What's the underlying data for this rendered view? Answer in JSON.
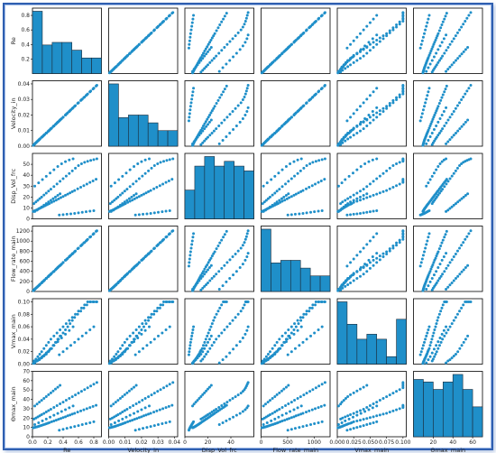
{
  "chart_data": {
    "type": "scatter",
    "kind": "pair-plot",
    "color": "#1f77b4",
    "point_color": "#1f8fc9",
    "hist_fill": "#1f8fc9",
    "variables": [
      "Re",
      "Velocity_in",
      "Disp_Vol_frc",
      "Flow_rate_main",
      "Vmax_main",
      "Θmax_main"
    ],
    "axis_ranges": {
      "Re": [
        0,
        0.9
      ],
      "Velocity_in": [
        0,
        0.042
      ],
      "Disp_Vol_frc": [
        0,
        60
      ],
      "Flow_rate_main": [
        0,
        1300
      ],
      "Vmax_main": [
        0,
        0.105
      ],
      "Θmax_main": [
        0,
        70
      ]
    },
    "x_ticks": {
      "Re": [
        "0.0",
        "0.2",
        "0.4",
        "0.6",
        "0.8"
      ],
      "Velocity_in": [
        "0.00",
        "0.01",
        "0.02",
        "0.03",
        "0.04"
      ],
      "Disp_Vol_frc": [
        "0",
        "20",
        "40"
      ],
      "Flow_rate_main": [
        "0",
        "500",
        "1000"
      ],
      "Vmax_main": [
        "0.000",
        "0.025",
        "0.050",
        "0.075",
        "0.100"
      ],
      "Θmax_main": [
        "20",
        "40",
        "60"
      ]
    },
    "y_ticks": {
      "Re": [
        "0.2",
        "0.4",
        "0.6",
        "0.8"
      ],
      "Velocity_in": [
        "0.00",
        "0.01",
        "0.02",
        "0.03",
        "0.04"
      ],
      "Disp_Vol_frc": [
        "0",
        "10",
        "20",
        "30",
        "40",
        "50"
      ],
      "Flow_rate_main": [
        "0",
        "200",
        "400",
        "600",
        "800",
        "1000",
        "1200"
      ],
      "Vmax_main": [
        "0.00",
        "0.02",
        "0.04",
        "0.06",
        "0.08",
        "0.10"
      ],
      "Θmax_main": [
        "0",
        "10",
        "20",
        "30",
        "40",
        "50",
        "60",
        "70"
      ]
    },
    "histograms": {
      "Re": [
        24,
        11,
        12,
        12,
        9,
        6,
        6
      ],
      "Velocity_in": [
        24,
        11,
        12,
        12,
        9,
        6,
        6
      ],
      "Disp_Vol_frc": [
        6,
        11,
        13,
        11,
        12,
        11,
        10
      ],
      "Flow_rate_main": [
        24,
        11,
        12,
        12,
        9,
        6,
        6
      ],
      "Vmax_main": [
        25,
        16,
        10,
        12,
        10,
        3,
        18
      ],
      "Θmax_main": [
        23,
        22,
        19,
        22,
        25,
        19,
        12
      ]
    },
    "records": [
      {
        "Re": 0.01,
        "Velocity_in": 0.0005,
        "Disp_Vol_frc": 6.7,
        "Flow_rate_main": 15,
        "Vmax_main": 0.001,
        "Θmax_main": 9.6
      },
      {
        "Re": 0.02,
        "Velocity_in": 0.001,
        "Disp_Vol_frc": 7.0,
        "Flow_rate_main": 30,
        "Vmax_main": 0.002,
        "Θmax_main": 9.8
      },
      {
        "Re": 0.03,
        "Velocity_in": 0.0015,
        "Disp_Vol_frc": 7.4,
        "Flow_rate_main": 45,
        "Vmax_main": 0.003,
        "Θmax_main": 10.0
      },
      {
        "Re": 0.04,
        "Velocity_in": 0.002,
        "Disp_Vol_frc": 7.7,
        "Flow_rate_main": 60,
        "Vmax_main": 0.004,
        "Θmax_main": 10.2
      },
      {
        "Re": 0.055,
        "Velocity_in": 0.0027,
        "Disp_Vol_frc": 8.2,
        "Flow_rate_main": 80,
        "Vmax_main": 0.005,
        "Θmax_main": 10.5
      },
      {
        "Re": 0.07,
        "Velocity_in": 0.0034,
        "Disp_Vol_frc": 8.7,
        "Flow_rate_main": 100,
        "Vmax_main": 0.006,
        "Θmax_main": 10.9
      },
      {
        "Re": 0.085,
        "Velocity_in": 0.0041,
        "Disp_Vol_frc": 9.3,
        "Flow_rate_main": 120,
        "Vmax_main": 0.008,
        "Θmax_main": 11.2
      },
      {
        "Re": 0.1,
        "Velocity_in": 0.0048,
        "Disp_Vol_frc": 9.8,
        "Flow_rate_main": 145,
        "Vmax_main": 0.009,
        "Θmax_main": 11.7
      },
      {
        "Re": 0.12,
        "Velocity_in": 0.0057,
        "Disp_Vol_frc": 10.5,
        "Flow_rate_main": 170,
        "Vmax_main": 0.011,
        "Θmax_main": 12.2
      },
      {
        "Re": 0.14,
        "Velocity_in": 0.0066,
        "Disp_Vol_frc": 11.2,
        "Flow_rate_main": 200,
        "Vmax_main": 0.013,
        "Θmax_main": 12.8
      },
      {
        "Re": 0.16,
        "Velocity_in": 0.0075,
        "Disp_Vol_frc": 11.9,
        "Flow_rate_main": 230,
        "Vmax_main": 0.015,
        "Θmax_main": 13.3
      },
      {
        "Re": 0.18,
        "Velocity_in": 0.0084,
        "Disp_Vol_frc": 12.6,
        "Flow_rate_main": 260,
        "Vmax_main": 0.017,
        "Θmax_main": 13.9
      },
      {
        "Re": 0.2,
        "Velocity_in": 0.0093,
        "Disp_Vol_frc": 13.3,
        "Flow_rate_main": 290,
        "Vmax_main": 0.02,
        "Θmax_main": 14.5
      },
      {
        "Re": 0.22,
        "Velocity_in": 0.0102,
        "Disp_Vol_frc": 14.0,
        "Flow_rate_main": 320,
        "Vmax_main": 0.022,
        "Θmax_main": 15.1
      },
      {
        "Re": 0.25,
        "Velocity_in": 0.0116,
        "Disp_Vol_frc": 15.1,
        "Flow_rate_main": 360,
        "Vmax_main": 0.025,
        "Θmax_main": 16.0
      },
      {
        "Re": 0.28,
        "Velocity_in": 0.013,
        "Disp_Vol_frc": 16.1,
        "Flow_rate_main": 400,
        "Vmax_main": 0.03,
        "Θmax_main": 16.9
      },
      {
        "Re": 0.31,
        "Velocity_in": 0.0144,
        "Disp_Vol_frc": 17.2,
        "Flow_rate_main": 445,
        "Vmax_main": 0.035,
        "Θmax_main": 17.8
      },
      {
        "Re": 0.34,
        "Velocity_in": 0.0158,
        "Disp_Vol_frc": 18.3,
        "Flow_rate_main": 490,
        "Vmax_main": 0.04,
        "Θmax_main": 18.7
      },
      {
        "Re": 0.37,
        "Velocity_in": 0.0172,
        "Disp_Vol_frc": 19.4,
        "Flow_rate_main": 530,
        "Vmax_main": 0.045,
        "Θmax_main": 19.6
      },
      {
        "Re": 0.4,
        "Velocity_in": 0.0186,
        "Disp_Vol_frc": 20.5,
        "Flow_rate_main": 575,
        "Vmax_main": 0.05,
        "Θmax_main": 20.5
      },
      {
        "Re": 0.43,
        "Velocity_in": 0.02,
        "Disp_Vol_frc": 21.6,
        "Flow_rate_main": 620,
        "Vmax_main": 0.055,
        "Θmax_main": 21.4
      },
      {
        "Re": 0.46,
        "Velocity_in": 0.0214,
        "Disp_Vol_frc": 22.7,
        "Flow_rate_main": 660,
        "Vmax_main": 0.06,
        "Θmax_main": 22.4
      },
      {
        "Re": 0.49,
        "Velocity_in": 0.0228,
        "Disp_Vol_frc": 23.8,
        "Flow_rate_main": 705,
        "Vmax_main": 0.065,
        "Θmax_main": 23.3
      },
      {
        "Re": 0.52,
        "Velocity_in": 0.0242,
        "Disp_Vol_frc": 24.9,
        "Flow_rate_main": 750,
        "Vmax_main": 0.07,
        "Θmax_main": 24.2
      },
      {
        "Re": 0.55,
        "Velocity_in": 0.0256,
        "Disp_Vol_frc": 26.0,
        "Flow_rate_main": 790,
        "Vmax_main": 0.075,
        "Θmax_main": 25.1
      },
      {
        "Re": 0.59,
        "Velocity_in": 0.0275,
        "Disp_Vol_frc": 27.5,
        "Flow_rate_main": 850,
        "Vmax_main": 0.08,
        "Θmax_main": 26.4
      },
      {
        "Re": 0.63,
        "Velocity_in": 0.0293,
        "Disp_Vol_frc": 29.0,
        "Flow_rate_main": 905,
        "Vmax_main": 0.085,
        "Θmax_main": 27.6
      },
      {
        "Re": 0.67,
        "Velocity_in": 0.0312,
        "Disp_Vol_frc": 30.4,
        "Flow_rate_main": 965,
        "Vmax_main": 0.09,
        "Θmax_main": 28.8
      },
      {
        "Re": 0.71,
        "Velocity_in": 0.033,
        "Disp_Vol_frc": 31.9,
        "Flow_rate_main": 1020,
        "Vmax_main": 0.095,
        "Θmax_main": 30.0
      },
      {
        "Re": 0.75,
        "Velocity_in": 0.0349,
        "Disp_Vol_frc": 33.4,
        "Flow_rate_main": 1080,
        "Vmax_main": 0.1,
        "Θmax_main": 31.3
      },
      {
        "Re": 0.79,
        "Velocity_in": 0.0367,
        "Disp_Vol_frc": 34.8,
        "Flow_rate_main": 1135,
        "Vmax_main": 0.1,
        "Θmax_main": 32.5
      },
      {
        "Re": 0.83,
        "Velocity_in": 0.0386,
        "Disp_Vol_frc": 36.3,
        "Flow_rate_main": 1195,
        "Vmax_main": 0.1,
        "Θmax_main": 33.7
      },
      {
        "Re": 0.02,
        "Velocity_in": 0.001,
        "Disp_Vol_frc": 14.0,
        "Flow_rate_main": 30,
        "Vmax_main": 0.005,
        "Θmax_main": 19.0
      },
      {
        "Re": 0.045,
        "Velocity_in": 0.0022,
        "Disp_Vol_frc": 15.5,
        "Flow_rate_main": 65,
        "Vmax_main": 0.008,
        "Θmax_main": 20.0
      },
      {
        "Re": 0.07,
        "Velocity_in": 0.0034,
        "Disp_Vol_frc": 17.0,
        "Flow_rate_main": 100,
        "Vmax_main": 0.012,
        "Θmax_main": 21.2
      },
      {
        "Re": 0.095,
        "Velocity_in": 0.0046,
        "Disp_Vol_frc": 18.5,
        "Flow_rate_main": 135,
        "Vmax_main": 0.016,
        "Θmax_main": 22.4
      },
      {
        "Re": 0.12,
        "Velocity_in": 0.0057,
        "Disp_Vol_frc": 20.0,
        "Flow_rate_main": 170,
        "Vmax_main": 0.02,
        "Θmax_main": 23.6
      },
      {
        "Re": 0.15,
        "Velocity_in": 0.0071,
        "Disp_Vol_frc": 21.8,
        "Flow_rate_main": 215,
        "Vmax_main": 0.025,
        "Θmax_main": 25.0
      },
      {
        "Re": 0.18,
        "Velocity_in": 0.0084,
        "Disp_Vol_frc": 23.6,
        "Flow_rate_main": 260,
        "Vmax_main": 0.03,
        "Θmax_main": 26.5
      },
      {
        "Re": 0.21,
        "Velocity_in": 0.0098,
        "Disp_Vol_frc": 25.4,
        "Flow_rate_main": 300,
        "Vmax_main": 0.035,
        "Θmax_main": 28.0
      },
      {
        "Re": 0.24,
        "Velocity_in": 0.0112,
        "Disp_Vol_frc": 27.2,
        "Flow_rate_main": 345,
        "Vmax_main": 0.04,
        "Θmax_main": 29.4
      },
      {
        "Re": 0.28,
        "Velocity_in": 0.013,
        "Disp_Vol_frc": 29.6,
        "Flow_rate_main": 400,
        "Vmax_main": 0.045,
        "Θmax_main": 31.4
      },
      {
        "Re": 0.32,
        "Velocity_in": 0.0149,
        "Disp_Vol_frc": 32.0,
        "Flow_rate_main": 460,
        "Vmax_main": 0.05,
        "Θmax_main": 33.3
      },
      {
        "Re": 0.36,
        "Velocity_in": 0.0168,
        "Disp_Vol_frc": 34.4,
        "Flow_rate_main": 515,
        "Vmax_main": 0.055,
        "Θmax_main": 35.2
      },
      {
        "Re": 0.4,
        "Velocity_in": 0.0186,
        "Disp_Vol_frc": 36.8,
        "Flow_rate_main": 575,
        "Vmax_main": 0.06,
        "Θmax_main": 37.1
      },
      {
        "Re": 0.44,
        "Velocity_in": 0.0205,
        "Disp_Vol_frc": 39.2,
        "Flow_rate_main": 630,
        "Vmax_main": 0.065,
        "Θmax_main": 39.1
      },
      {
        "Re": 0.48,
        "Velocity_in": 0.0223,
        "Disp_Vol_frc": 41.6,
        "Flow_rate_main": 690,
        "Vmax_main": 0.07,
        "Θmax_main": 41.0
      },
      {
        "Re": 0.52,
        "Velocity_in": 0.0242,
        "Disp_Vol_frc": 44.0,
        "Flow_rate_main": 745,
        "Vmax_main": 0.075,
        "Θmax_main": 42.9
      },
      {
        "Re": 0.56,
        "Velocity_in": 0.0261,
        "Disp_Vol_frc": 46.4,
        "Flow_rate_main": 805,
        "Vmax_main": 0.08,
        "Θmax_main": 44.8
      },
      {
        "Re": 0.6,
        "Velocity_in": 0.0279,
        "Disp_Vol_frc": 48.8,
        "Flow_rate_main": 860,
        "Vmax_main": 0.085,
        "Θmax_main": 46.7
      },
      {
        "Re": 0.64,
        "Velocity_in": 0.0298,
        "Disp_Vol_frc": 50.5,
        "Flow_rate_main": 920,
        "Vmax_main": 0.09,
        "Θmax_main": 48.6
      },
      {
        "Re": 0.68,
        "Velocity_in": 0.0316,
        "Disp_Vol_frc": 51.8,
        "Flow_rate_main": 975,
        "Vmax_main": 0.095,
        "Θmax_main": 50.5
      },
      {
        "Re": 0.72,
        "Velocity_in": 0.0335,
        "Disp_Vol_frc": 52.8,
        "Flow_rate_main": 1035,
        "Vmax_main": 0.1,
        "Θmax_main": 52.4
      },
      {
        "Re": 0.76,
        "Velocity_in": 0.0354,
        "Disp_Vol_frc": 53.6,
        "Flow_rate_main": 1090,
        "Vmax_main": 0.1,
        "Θmax_main": 54.3
      },
      {
        "Re": 0.8,
        "Velocity_in": 0.0372,
        "Disp_Vol_frc": 54.3,
        "Flow_rate_main": 1150,
        "Vmax_main": 0.1,
        "Θmax_main": 56.2
      },
      {
        "Re": 0.84,
        "Velocity_in": 0.0391,
        "Disp_Vol_frc": 55.0,
        "Flow_rate_main": 1205,
        "Vmax_main": 0.1,
        "Θmax_main": 58.1
      },
      {
        "Re": 0.03,
        "Velocity_in": 0.0015,
        "Disp_Vol_frc": 6.7,
        "Flow_rate_main": 45,
        "Vmax_main": 0.002,
        "Θmax_main": 33.0
      },
      {
        "Re": 0.06,
        "Velocity_in": 0.0029,
        "Disp_Vol_frc": 8.0,
        "Flow_rate_main": 85,
        "Vmax_main": 0.005,
        "Θmax_main": 35.0
      },
      {
        "Re": 0.09,
        "Velocity_in": 0.0043,
        "Disp_Vol_frc": 9.5,
        "Flow_rate_main": 130,
        "Vmax_main": 0.007,
        "Θmax_main": 37.0
      },
      {
        "Re": 0.12,
        "Velocity_in": 0.0057,
        "Disp_Vol_frc": 11.0,
        "Flow_rate_main": 170,
        "Vmax_main": 0.01,
        "Θmax_main": 39.0
      },
      {
        "Re": 0.15,
        "Velocity_in": 0.0071,
        "Disp_Vol_frc": 12.5,
        "Flow_rate_main": 215,
        "Vmax_main": 0.013,
        "Θmax_main": 41.0
      },
      {
        "Re": 0.18,
        "Velocity_in": 0.0084,
        "Disp_Vol_frc": 14.0,
        "Flow_rate_main": 260,
        "Vmax_main": 0.016,
        "Θmax_main": 43.0
      },
      {
        "Re": 0.21,
        "Velocity_in": 0.0098,
        "Disp_Vol_frc": 15.5,
        "Flow_rate_main": 300,
        "Vmax_main": 0.02,
        "Θmax_main": 45.0
      },
      {
        "Re": 0.24,
        "Velocity_in": 0.0112,
        "Disp_Vol_frc": 17.0,
        "Flow_rate_main": 345,
        "Vmax_main": 0.025,
        "Θmax_main": 47.0
      },
      {
        "Re": 0.27,
        "Velocity_in": 0.0126,
        "Disp_Vol_frc": 18.5,
        "Flow_rate_main": 390,
        "Vmax_main": 0.03,
        "Θmax_main": 49.0
      },
      {
        "Re": 0.3,
        "Velocity_in": 0.014,
        "Disp_Vol_frc": 20.0,
        "Flow_rate_main": 430,
        "Vmax_main": 0.035,
        "Θmax_main": 51.0
      },
      {
        "Re": 0.33,
        "Velocity_in": 0.0154,
        "Disp_Vol_frc": 21.5,
        "Flow_rate_main": 475,
        "Vmax_main": 0.04,
        "Θmax_main": 53.0
      },
      {
        "Re": 0.36,
        "Velocity_in": 0.0168,
        "Disp_Vol_frc": 23.0,
        "Flow_rate_main": 515,
        "Vmax_main": 0.045,
        "Θmax_main": 55.0
      },
      {
        "Re": 0.03,
        "Velocity_in": 0.0015,
        "Disp_Vol_frc": 30.0,
        "Flow_rate_main": 45,
        "Vmax_main": 0.002,
        "Θmax_main": 13.0
      },
      {
        "Re": 0.08,
        "Velocity_in": 0.0038,
        "Disp_Vol_frc": 33.0,
        "Flow_rate_main": 115,
        "Vmax_main": 0.007,
        "Θmax_main": 15.0
      },
      {
        "Re": 0.13,
        "Velocity_in": 0.0061,
        "Disp_Vol_frc": 36.0,
        "Flow_rate_main": 190,
        "Vmax_main": 0.012,
        "Θmax_main": 17.0
      },
      {
        "Re": 0.18,
        "Velocity_in": 0.0084,
        "Disp_Vol_frc": 39.0,
        "Flow_rate_main": 260,
        "Vmax_main": 0.018,
        "Θmax_main": 19.0
      },
      {
        "Re": 0.23,
        "Velocity_in": 0.0107,
        "Disp_Vol_frc": 42.0,
        "Flow_rate_main": 330,
        "Vmax_main": 0.024,
        "Θmax_main": 21.0
      },
      {
        "Re": 0.28,
        "Velocity_in": 0.013,
        "Disp_Vol_frc": 45.0,
        "Flow_rate_main": 400,
        "Vmax_main": 0.03,
        "Θmax_main": 23.0
      },
      {
        "Re": 0.33,
        "Velocity_in": 0.0154,
        "Disp_Vol_frc": 48.0,
        "Flow_rate_main": 475,
        "Vmax_main": 0.036,
        "Θmax_main": 25.0
      },
      {
        "Re": 0.38,
        "Velocity_in": 0.0177,
        "Disp_Vol_frc": 50.5,
        "Flow_rate_main": 545,
        "Vmax_main": 0.042,
        "Θmax_main": 27.0
      },
      {
        "Re": 0.43,
        "Velocity_in": 0.02,
        "Disp_Vol_frc": 52.5,
        "Flow_rate_main": 620,
        "Vmax_main": 0.048,
        "Θmax_main": 29.0
      },
      {
        "Re": 0.48,
        "Velocity_in": 0.0223,
        "Disp_Vol_frc": 54.0,
        "Flow_rate_main": 690,
        "Vmax_main": 0.054,
        "Θmax_main": 31.0
      },
      {
        "Re": 0.53,
        "Velocity_in": 0.0247,
        "Disp_Vol_frc": 55.0,
        "Flow_rate_main": 760,
        "Vmax_main": 0.06,
        "Θmax_main": 33.0
      },
      {
        "Re": 0.35,
        "Velocity_in": 0.0163,
        "Disp_Vol_frc": 3.5,
        "Flow_rate_main": 505,
        "Vmax_main": 0.015,
        "Θmax_main": 7.0
      },
      {
        "Re": 0.4,
        "Velocity_in": 0.0186,
        "Disp_Vol_frc": 3.8,
        "Flow_rate_main": 575,
        "Vmax_main": 0.02,
        "Θmax_main": 8.0
      },
      {
        "Re": 0.45,
        "Velocity_in": 0.0209,
        "Disp_Vol_frc": 4.2,
        "Flow_rate_main": 645,
        "Vmax_main": 0.025,
        "Θmax_main": 9.0
      },
      {
        "Re": 0.5,
        "Velocity_in": 0.0233,
        "Disp_Vol_frc": 4.6,
        "Flow_rate_main": 720,
        "Vmax_main": 0.03,
        "Θmax_main": 10.0
      },
      {
        "Re": 0.55,
        "Velocity_in": 0.0256,
        "Disp_Vol_frc": 5.0,
        "Flow_rate_main": 790,
        "Vmax_main": 0.035,
        "Θmax_main": 11.0
      },
      {
        "Re": 0.6,
        "Velocity_in": 0.0279,
        "Disp_Vol_frc": 5.5,
        "Flow_rate_main": 860,
        "Vmax_main": 0.04,
        "Θmax_main": 12.0
      },
      {
        "Re": 0.65,
        "Velocity_in": 0.0302,
        "Disp_Vol_frc": 6.0,
        "Flow_rate_main": 935,
        "Vmax_main": 0.045,
        "Θmax_main": 13.0
      },
      {
        "Re": 0.7,
        "Velocity_in": 0.0326,
        "Disp_Vol_frc": 6.5,
        "Flow_rate_main": 1005,
        "Vmax_main": 0.05,
        "Θmax_main": 14.0
      },
      {
        "Re": 0.75,
        "Velocity_in": 0.0349,
        "Disp_Vol_frc": 7.0,
        "Flow_rate_main": 1080,
        "Vmax_main": 0.055,
        "Θmax_main": 15.0
      },
      {
        "Re": 0.8,
        "Velocity_in": 0.0372,
        "Disp_Vol_frc": 7.5,
        "Flow_rate_main": 1150,
        "Vmax_main": 0.06,
        "Θmax_main": 16.0
      }
    ]
  }
}
